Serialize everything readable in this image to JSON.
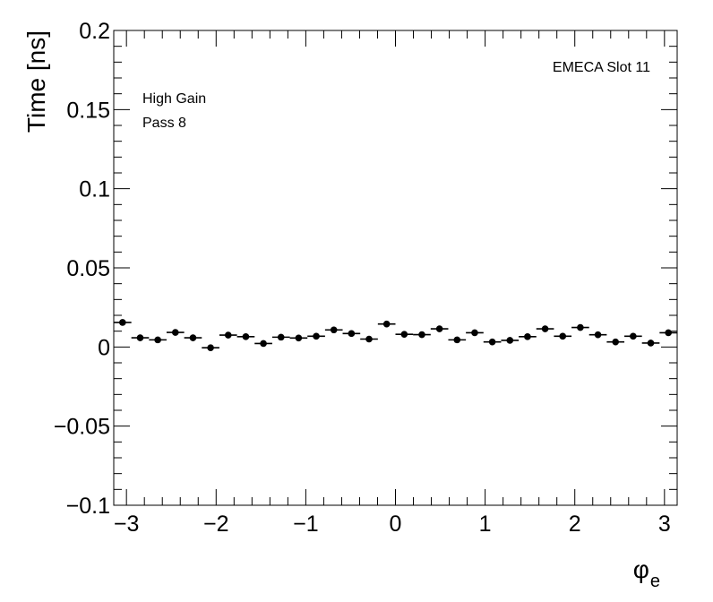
{
  "chart_data": {
    "type": "scatter",
    "title": "",
    "xlabel": "φ",
    "xlabel_subscript": "e",
    "ylabel": "Time [ns]",
    "xlim": [
      -3.1416,
      3.1416
    ],
    "ylim": [
      -0.1,
      0.2
    ],
    "x_ticks": [
      {
        "value": -3,
        "label": "−3"
      },
      {
        "value": -2,
        "label": "−2"
      },
      {
        "value": -1,
        "label": "−1"
      },
      {
        "value": 0,
        "label": "0"
      },
      {
        "value": 1,
        "label": "1"
      },
      {
        "value": 2,
        "label": "2"
      },
      {
        "value": 3,
        "label": "3"
      }
    ],
    "y_ticks": [
      {
        "value": -0.1,
        "label": "−0.1"
      },
      {
        "value": -0.05,
        "label": "−0.05"
      },
      {
        "value": 0,
        "label": "0"
      },
      {
        "value": 0.05,
        "label": "0.05"
      },
      {
        "value": 0.1,
        "label": "0.1"
      },
      {
        "value": 0.15,
        "label": "0.15"
      },
      {
        "value": 0.2,
        "label": "0.2"
      }
    ],
    "grid": false,
    "marker_color": "#000000",
    "annotations": {
      "top_right": "EMECA Slot 11",
      "top_left": [
        "High Gain",
        "Pass 8"
      ]
    },
    "series": [
      {
        "x_bin_width": 0.19635,
        "x": [
          -3.0434,
          -2.8471,
          -2.6507,
          -2.4544,
          -2.258,
          -2.0617,
          -1.8653,
          -1.669,
          -1.4726,
          -1.2763,
          -1.0799,
          -0.8836,
          -0.6872,
          -0.4909,
          -0.2945,
          -0.0982,
          0.0982,
          0.2945,
          0.4909,
          0.6872,
          0.8836,
          1.0799,
          1.2763,
          1.4726,
          1.669,
          1.8653,
          2.0617,
          2.258,
          2.4544,
          2.6507,
          2.8471,
          3.0434
        ],
        "y": [
          0.0155,
          0.0058,
          0.0045,
          0.0092,
          0.0058,
          -0.0005,
          0.0075,
          0.0065,
          0.0022,
          0.0062,
          0.0057,
          0.0068,
          0.0108,
          0.0085,
          0.005,
          0.0145,
          0.008,
          0.0078,
          0.0115,
          0.0045,
          0.009,
          0.0032,
          0.0042,
          0.0065,
          0.0115,
          0.0068,
          0.0123,
          0.0077,
          0.0032,
          0.0068,
          0.0025,
          0.009
        ],
        "y_err": [
          0.002,
          0.002,
          0.002,
          0.002,
          0.002,
          0.002,
          0.002,
          0.002,
          0.002,
          0.002,
          0.002,
          0.002,
          0.002,
          0.002,
          0.002,
          0.002,
          0.002,
          0.002,
          0.002,
          0.002,
          0.002,
          0.002,
          0.002,
          0.002,
          0.002,
          0.002,
          0.002,
          0.002,
          0.002,
          0.002,
          0.002,
          0.002
        ]
      }
    ]
  }
}
